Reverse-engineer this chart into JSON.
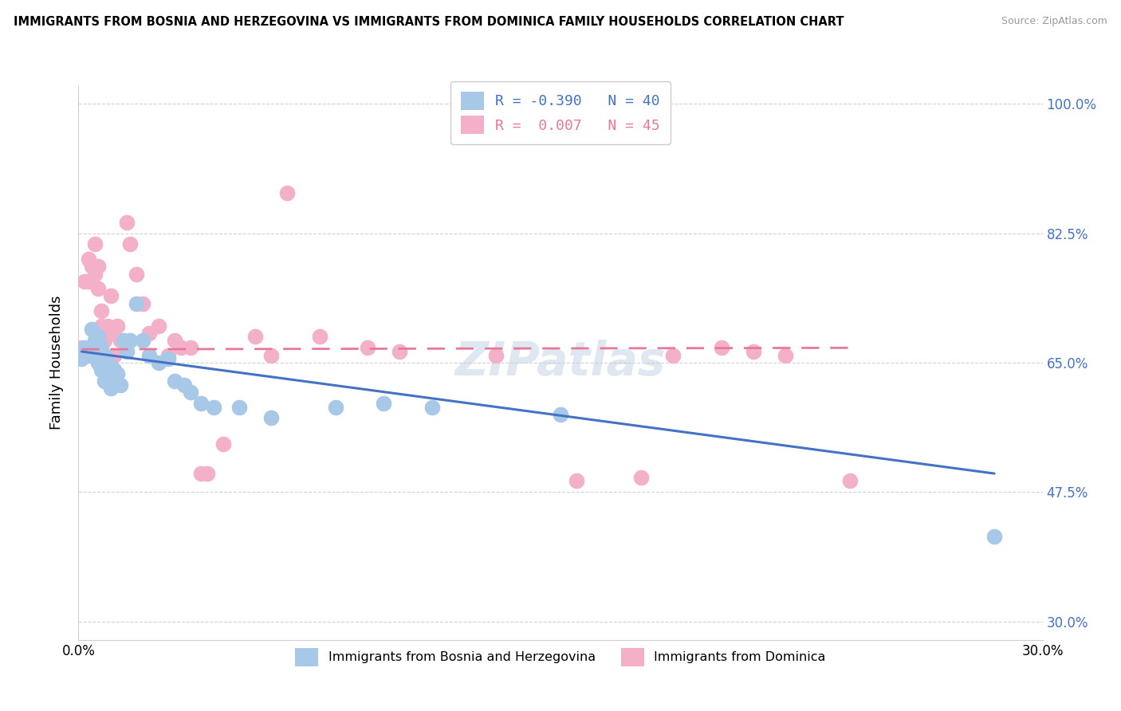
{
  "title": "IMMIGRANTS FROM BOSNIA AND HERZEGOVINA VS IMMIGRANTS FROM DOMINICA FAMILY HOUSEHOLDS CORRELATION CHART",
  "source": "Source: ZipAtlas.com",
  "ylabel": "Family Households",
  "xlim": [
    0.0,
    0.3
  ],
  "ylim": [
    0.275,
    1.025
  ],
  "ytick_vals": [
    0.3,
    0.475,
    0.65,
    0.825,
    1.0
  ],
  "ytick_labels": [
    "30.0%",
    "47.5%",
    "65.0%",
    "82.5%",
    "100.0%"
  ],
  "xtick_vals": [
    0.0,
    0.3
  ],
  "xtick_labels": [
    "0.0%",
    "30.0%"
  ],
  "legend_r_blue": "R = -0.390",
  "legend_n_blue": "N = 40",
  "legend_r_pink": "R =  0.007",
  "legend_n_pink": "N = 45",
  "legend_blue_label": "Immigrants from Bosnia and Herzegovina",
  "legend_pink_label": "Immigrants from Dominica",
  "blue_scatter_color": "#a8c8e8",
  "pink_scatter_color": "#f4b0c8",
  "blue_line_color": "#4472c4",
  "pink_line_color": "#e8789a",
  "grid_color": "#d0d0d0",
  "blue_x": [
    0.001,
    0.002,
    0.003,
    0.004,
    0.004,
    0.005,
    0.005,
    0.006,
    0.006,
    0.007,
    0.007,
    0.008,
    0.008,
    0.009,
    0.009,
    0.01,
    0.01,
    0.011,
    0.012,
    0.013,
    0.014,
    0.015,
    0.016,
    0.018,
    0.02,
    0.022,
    0.025,
    0.028,
    0.03,
    0.033,
    0.035,
    0.038,
    0.042,
    0.05,
    0.06,
    0.08,
    0.095,
    0.11,
    0.15,
    0.285
  ],
  "blue_y": [
    0.655,
    0.67,
    0.66,
    0.695,
    0.665,
    0.68,
    0.66,
    0.685,
    0.65,
    0.67,
    0.64,
    0.66,
    0.625,
    0.65,
    0.625,
    0.645,
    0.615,
    0.64,
    0.635,
    0.62,
    0.68,
    0.665,
    0.68,
    0.73,
    0.68,
    0.66,
    0.65,
    0.655,
    0.625,
    0.62,
    0.61,
    0.595,
    0.59,
    0.59,
    0.575,
    0.59,
    0.595,
    0.59,
    0.58,
    0.415
  ],
  "pink_x": [
    0.001,
    0.002,
    0.003,
    0.003,
    0.004,
    0.005,
    0.005,
    0.006,
    0.006,
    0.007,
    0.007,
    0.008,
    0.009,
    0.01,
    0.01,
    0.011,
    0.012,
    0.013,
    0.015,
    0.016,
    0.018,
    0.02,
    0.022,
    0.025,
    0.028,
    0.03,
    0.032,
    0.035,
    0.038,
    0.04,
    0.045,
    0.055,
    0.06,
    0.065,
    0.075,
    0.09,
    0.1,
    0.13,
    0.155,
    0.175,
    0.185,
    0.2,
    0.21,
    0.22,
    0.24
  ],
  "pink_y": [
    0.67,
    0.76,
    0.76,
    0.79,
    0.78,
    0.81,
    0.77,
    0.75,
    0.78,
    0.7,
    0.72,
    0.68,
    0.7,
    0.69,
    0.74,
    0.66,
    0.7,
    0.68,
    0.84,
    0.81,
    0.77,
    0.73,
    0.69,
    0.7,
    0.66,
    0.68,
    0.67,
    0.67,
    0.5,
    0.5,
    0.54,
    0.685,
    0.66,
    0.88,
    0.685,
    0.67,
    0.665,
    0.66,
    0.49,
    0.495,
    0.66,
    0.67,
    0.665,
    0.66,
    0.49
  ]
}
